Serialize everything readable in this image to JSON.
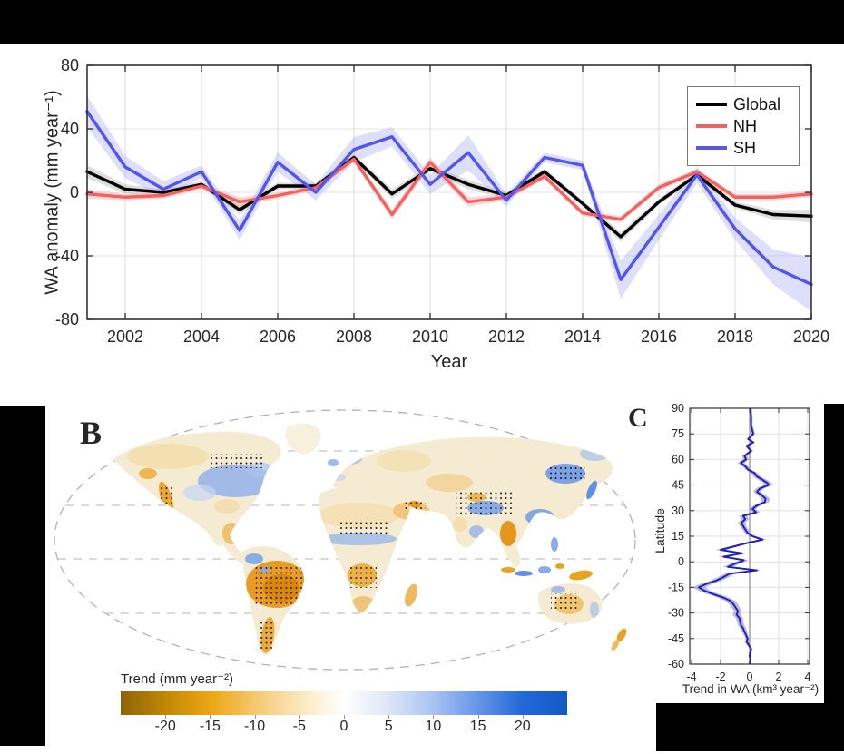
{
  "figure": {
    "background": "#ffffff",
    "mask_color": "#000000"
  },
  "chart_data": [
    {
      "id": "panel-A",
      "type": "line",
      "xlabel": "Year",
      "ylabel": "WA anomaly (mm year⁻¹)",
      "x": [
        2001,
        2002,
        2003,
        2004,
        2005,
        2006,
        2007,
        2008,
        2009,
        2010,
        2011,
        2012,
        2013,
        2014,
        2015,
        2016,
        2017,
        2018,
        2019,
        2020
      ],
      "xlim": [
        2001,
        2020
      ],
      "ylim": [
        -80,
        80
      ],
      "xticks": [
        2002,
        2004,
        2006,
        2008,
        2010,
        2012,
        2014,
        2016,
        2018,
        2020
      ],
      "yticks": [
        -80,
        -40,
        0,
        40,
        80
      ],
      "grid": true,
      "legend_position": "top-right",
      "series": [
        {
          "name": "Global",
          "color": "#000000",
          "band_color": "#a8a8a8",
          "values": [
            13,
            2,
            0,
            5,
            -11,
            4,
            4,
            22,
            -1,
            15,
            5,
            -2,
            13,
            -7,
            -28,
            -6,
            11,
            -8,
            -14,
            -15
          ],
          "band": [
            4,
            3,
            2,
            2,
            3,
            2,
            2,
            2,
            3,
            2,
            3,
            2,
            2,
            2,
            3,
            2,
            2,
            2,
            3,
            4
          ]
        },
        {
          "name": "NH",
          "color": "#f4615e",
          "band_color": "#f5a09e",
          "values": [
            -1,
            -3,
            -2,
            4,
            -6,
            -2,
            3,
            21,
            -14,
            19,
            -6,
            -3,
            10,
            -13,
            -17,
            3,
            13,
            -3,
            -3,
            -1
          ],
          "band": [
            3,
            2,
            2,
            2,
            3,
            2,
            2,
            2,
            3,
            3,
            3,
            2,
            2,
            2,
            2,
            2,
            2,
            2,
            2,
            2
          ]
        },
        {
          "name": "SH",
          "color": "#5355ee",
          "band_color": "#a9aaf5",
          "values": [
            51,
            16,
            2,
            13,
            -24,
            19,
            0,
            27,
            35,
            5,
            25,
            -5,
            22,
            17,
            -55,
            -22,
            11,
            -23,
            -47,
            -58
          ],
          "band": [
            10,
            7,
            5,
            4,
            6,
            6,
            5,
            8,
            6,
            6,
            11,
            4,
            3,
            3,
            12,
            8,
            5,
            7,
            11,
            17
          ]
        }
      ]
    },
    {
      "id": "panel-C",
      "type": "line",
      "label": "C",
      "xlabel": "Trend in WA (km³ year⁻²)",
      "ylabel": "Latitude",
      "xlim": [
        -4,
        4
      ],
      "ylim": [
        -60,
        90
      ],
      "xticks": [
        -4,
        -2,
        0,
        2,
        4
      ],
      "yticks": [
        90,
        75,
        60,
        45,
        30,
        15,
        0,
        -15,
        -30,
        -45,
        -60
      ],
      "line_color": "#1e1eb4",
      "band_color": "#8f89cf",
      "zero_line_color": "#8c8c8c",
      "latitudes": [
        90,
        85,
        80,
        75,
        72,
        70,
        68,
        65,
        62,
        60,
        58,
        56,
        54,
        52,
        50,
        48,
        46,
        45,
        43,
        41,
        39,
        37,
        35,
        33,
        31,
        29,
        27,
        25,
        23,
        21,
        19,
        17,
        15,
        13,
        11,
        9,
        7,
        5,
        3,
        1,
        0,
        -1,
        -3,
        -5,
        -7,
        -9,
        -11,
        -13,
        -15,
        -17,
        -19,
        -21,
        -23,
        -25,
        -27,
        -29,
        -31,
        -33,
        -35,
        -37,
        -39,
        -41,
        -43,
        -45,
        -47,
        -49,
        -51,
        -53,
        -55,
        -57,
        -60
      ],
      "values": [
        0.05,
        0.1,
        0.1,
        0.25,
        -0.1,
        0.25,
        -0.2,
        0.1,
        -0.35,
        -0.25,
        -0.6,
        -0.3,
        -0.1,
        0.35,
        0.5,
        0.9,
        1.25,
        1.3,
        0.7,
        0.5,
        0.85,
        1.1,
        1.05,
        0.5,
        0.2,
        0.45,
        -0.45,
        -0.3,
        -0.55,
        -0.45,
        -0.3,
        -0.15,
        0.2,
        0.9,
        -0.2,
        -1.1,
        -2.0,
        -0.5,
        -1.8,
        -0.4,
        -0.6,
        -1.0,
        -1.5,
        0.5,
        -1.4,
        -1.8,
        -2.3,
        -3.0,
        -3.5,
        -3.1,
        -2.5,
        -1.8,
        -1.3,
        -1.1,
        -0.95,
        -0.8,
        -0.9,
        -0.7,
        -0.65,
        -0.6,
        -0.45,
        -0.35,
        -0.25,
        -0.15,
        -0.2,
        -0.05,
        0.1,
        0.05,
        0.0,
        0.05,
        0.0
      ],
      "band": [
        0.1,
        0.1,
        0.1,
        0.12,
        0.12,
        0.12,
        0.12,
        0.15,
        0.18,
        0.2,
        0.25,
        0.2,
        0.2,
        0.22,
        0.25,
        0.3,
        0.3,
        0.3,
        0.28,
        0.25,
        0.28,
        0.3,
        0.28,
        0.25,
        0.22,
        0.25,
        0.28,
        0.25,
        0.25,
        0.22,
        0.2,
        0.2,
        0.22,
        0.28,
        0.25,
        0.3,
        0.35,
        0.3,
        0.35,
        0.3,
        0.3,
        0.32,
        0.35,
        0.3,
        0.35,
        0.38,
        0.4,
        0.42,
        0.45,
        0.42,
        0.4,
        0.38,
        0.35,
        0.3,
        0.28,
        0.25,
        0.28,
        0.25,
        0.22,
        0.22,
        0.2,
        0.18,
        0.15,
        0.12,
        0.15,
        0.1,
        0.1,
        0.1,
        0.08,
        0.08,
        0.08
      ]
    },
    {
      "id": "panel-B",
      "type": "map",
      "label": "B",
      "projection": "robinson-outline-dashed",
      "colorbar": {
        "label": "Trend (mm year⁻²)",
        "min": -25,
        "max": 25,
        "ticks": [
          -20,
          -15,
          -10,
          -5,
          0,
          5,
          10,
          15,
          20
        ],
        "gradient": [
          "#8f6206",
          "#c08806",
          "#eca513",
          "#f5c76f",
          "#fbe7bd",
          "#ffffff",
          "#dce6f6",
          "#a9c3f2",
          "#6695e9",
          "#2268d8",
          "#1159c6"
        ]
      }
    }
  ]
}
